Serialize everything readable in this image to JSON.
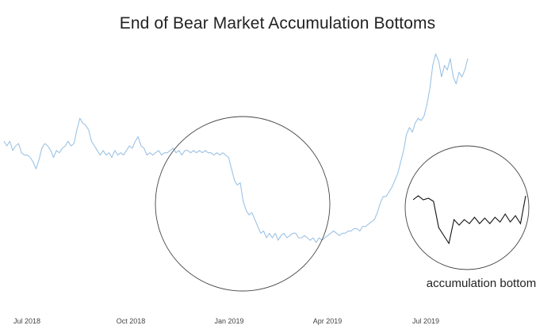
{
  "chart_data": {
    "type": "line",
    "title": "End of Bear Market Accumulation Bottoms",
    "xlabel": "",
    "ylabel": "",
    "x_ticks": [
      "Jul 2018",
      "Oct 2018",
      "Jan 2019",
      "Apr 2019",
      "Jul 2019"
    ],
    "grid": false,
    "legend": "none",
    "colors": {
      "series": "#9cc3e4",
      "circle": "#444444",
      "inset_line": "#111111",
      "text": "#222222"
    },
    "series": [
      {
        "values": [
          0.62,
          0.6,
          0.62,
          0.58,
          0.6,
          0.61,
          0.57,
          0.56,
          0.56,
          0.55,
          0.53,
          0.5,
          0.54,
          0.59,
          0.61,
          0.6,
          0.58,
          0.55,
          0.58,
          0.57,
          0.59,
          0.6,
          0.62,
          0.6,
          0.61,
          0.67,
          0.72,
          0.7,
          0.69,
          0.67,
          0.62,
          0.6,
          0.58,
          0.56,
          0.58,
          0.56,
          0.57,
          0.55,
          0.58,
          0.56,
          0.57,
          0.56,
          0.58,
          0.6,
          0.59,
          0.62,
          0.64,
          0.6,
          0.59,
          0.56,
          0.57,
          0.56,
          0.57,
          0.58,
          0.56,
          0.57,
          0.57,
          0.58,
          0.59,
          0.57,
          0.58,
          0.56,
          0.58,
          0.58,
          0.57,
          0.58,
          0.57,
          0.58,
          0.57,
          0.58,
          0.57,
          0.57,
          0.56,
          0.57,
          0.56,
          0.57,
          0.56,
          0.55,
          0.5,
          0.45,
          0.43,
          0.44,
          0.36,
          0.32,
          0.3,
          0.31,
          0.28,
          0.25,
          0.22,
          0.23,
          0.2,
          0.22,
          0.2,
          0.22,
          0.19,
          0.21,
          0.22,
          0.2,
          0.21,
          0.22,
          0.22,
          0.2,
          0.2,
          0.21,
          0.2,
          0.19,
          0.2,
          0.18,
          0.2,
          0.19,
          0.2,
          0.21,
          0.22,
          0.23,
          0.22,
          0.21,
          0.22,
          0.22,
          0.23,
          0.23,
          0.24,
          0.24,
          0.23,
          0.25,
          0.25,
          0.26,
          0.27,
          0.28,
          0.31,
          0.35,
          0.38,
          0.38,
          0.4,
          0.42,
          0.45,
          0.48,
          0.53,
          0.58,
          0.65,
          0.68,
          0.66,
          0.7,
          0.72,
          0.71,
          0.73,
          0.78,
          0.85,
          0.95,
          1.0,
          0.97,
          0.9,
          0.95,
          0.93,
          0.98,
          0.9,
          0.87,
          0.92,
          0.9,
          0.93,
          0.98
        ]
      }
    ],
    "annotations": {
      "inset_label": "accumulation bottom",
      "inset_values": [
        0.8,
        0.85,
        0.8,
        0.82,
        0.78,
        0.45,
        0.35,
        0.25,
        0.55,
        0.48,
        0.55,
        0.5,
        0.58,
        0.5,
        0.57,
        0.5,
        0.58,
        0.52,
        0.62,
        0.52,
        0.6,
        0.5,
        0.85
      ]
    }
  }
}
